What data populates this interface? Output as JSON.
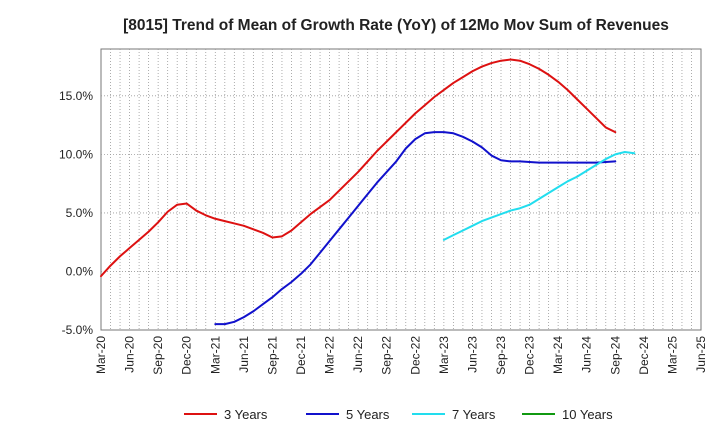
{
  "chart_data": {
    "type": "line",
    "title": "[8015]  Trend of Mean of Growth Rate (YoY) of 12Mo Mov Sum of Revenues",
    "xlabel": "",
    "ylabel": "",
    "ylim": [
      -5,
      19
    ],
    "yticks": [
      -5,
      0,
      5,
      10,
      15
    ],
    "ytick_labels": [
      "-5.0%",
      "0.0%",
      "5.0%",
      "10.0%",
      "15.0%"
    ],
    "x_start": "Mar-20",
    "x_end": "Jun-25",
    "x_tick_labels": [
      "Mar-20",
      "Jun-20",
      "Sep-20",
      "Dec-20",
      "Mar-21",
      "Jun-21",
      "Sep-21",
      "Dec-21",
      "Mar-22",
      "Jun-22",
      "Sep-22",
      "Dec-22",
      "Mar-23",
      "Jun-23",
      "Sep-23",
      "Dec-23",
      "Mar-24",
      "Jun-24",
      "Sep-24",
      "Dec-24",
      "Mar-25",
      "Jun-25"
    ],
    "grid": true,
    "legend_position": "bottom",
    "series": [
      {
        "name": "3 Years",
        "color": "#dd1111",
        "start_index": 0,
        "values": [
          -0.4,
          0.5,
          1.3,
          2.0,
          2.7,
          3.4,
          4.2,
          5.1,
          5.7,
          5.8,
          5.2,
          4.8,
          4.5,
          4.3,
          4.1,
          3.9,
          3.6,
          3.3,
          2.9,
          3.0,
          3.5,
          4.2,
          4.9,
          5.5,
          6.1,
          6.9,
          7.7,
          8.5,
          9.4,
          10.3,
          11.1,
          11.9,
          12.7,
          13.5,
          14.2,
          14.9,
          15.5,
          16.1,
          16.6,
          17.1,
          17.5,
          17.8,
          18.0,
          18.1,
          18.0,
          17.7,
          17.3,
          16.8,
          16.2,
          15.5,
          14.7,
          13.9,
          13.1,
          12.3,
          11.9
        ]
      },
      {
        "name": "5 Years",
        "color": "#1111cc",
        "start_index": 12,
        "values": [
          -4.5,
          -4.5,
          -4.3,
          -3.9,
          -3.4,
          -2.8,
          -2.2,
          -1.5,
          -0.9,
          -0.2,
          0.6,
          1.6,
          2.6,
          3.6,
          4.6,
          5.6,
          6.6,
          7.6,
          8.5,
          9.4,
          10.5,
          11.3,
          11.8,
          11.9,
          11.9,
          11.8,
          11.5,
          11.1,
          10.6,
          9.9,
          9.5,
          9.4,
          9.4,
          9.35,
          9.3,
          9.3,
          9.3,
          9.3,
          9.3,
          9.3,
          9.3,
          9.35,
          9.4
        ]
      },
      {
        "name": "7 Years",
        "color": "#22ddee",
        "start_index": 36,
        "values": [
          2.7,
          3.1,
          3.5,
          3.9,
          4.3,
          4.6,
          4.9,
          5.2,
          5.4,
          5.7,
          6.2,
          6.7,
          7.2,
          7.7,
          8.1,
          8.6,
          9.1,
          9.6,
          10.0,
          10.2,
          10.1
        ]
      },
      {
        "name": "10 Years",
        "color": "#119911",
        "start_index": 0,
        "values": []
      }
    ]
  }
}
